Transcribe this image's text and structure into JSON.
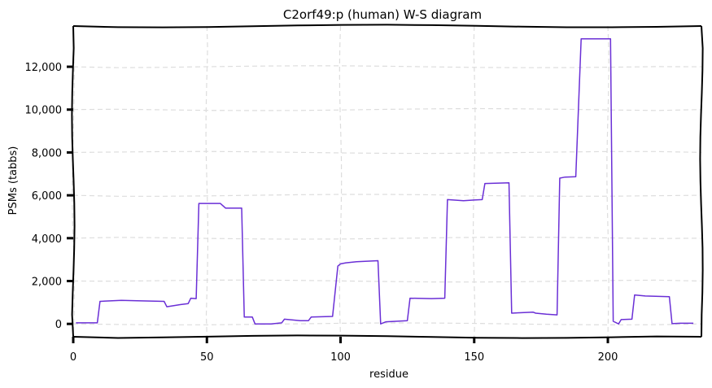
{
  "chart_data": {
    "type": "line",
    "title": "C2orf49:p (human) W-S diagram",
    "xlabel": "residue",
    "ylabel": "PSMs (tabbs)",
    "xlim": [
      0,
      235
    ],
    "ylim": [
      -600,
      13900
    ],
    "xticks": [
      0,
      50,
      100,
      150,
      200
    ],
    "xtick_labels": [
      "0",
      "50",
      "100",
      "150",
      "200"
    ],
    "yticks": [
      0,
      2000,
      4000,
      6000,
      8000,
      10000,
      12000
    ],
    "ytick_labels": [
      "0",
      "2,000",
      "4,000",
      "6,000",
      "8,000",
      "10,000",
      "12,000"
    ],
    "grid": true,
    "style": "xkcd",
    "series": [
      {
        "color": "#6a2fd6",
        "x": [
          1,
          9,
          10,
          18,
          24,
          34,
          35,
          40,
          43,
          44,
          46,
          47,
          55,
          57,
          63,
          64,
          67,
          68,
          74,
          78,
          79,
          85,
          88,
          89,
          97,
          99,
          100,
          102,
          106,
          114,
          115,
          117,
          125,
          126,
          134,
          139,
          140,
          146,
          150,
          153,
          154,
          163,
          164,
          167,
          172,
          173,
          177,
          181,
          182,
          184,
          188,
          190,
          201,
          202,
          204,
          205,
          209,
          210,
          214,
          223,
          224,
          227,
          232
        ],
        "y": [
          50,
          50,
          1050,
          1100,
          1080,
          1050,
          800,
          900,
          950,
          1200,
          1180,
          5620,
          5620,
          5400,
          5400,
          320,
          320,
          0,
          0,
          50,
          220,
          150,
          150,
          320,
          350,
          2700,
          2800,
          2850,
          2900,
          2950,
          0,
          100,
          150,
          1200,
          1180,
          1200,
          5800,
          5750,
          5780,
          5800,
          6550,
          6580,
          500,
          520,
          550,
          500,
          450,
          420,
          6800,
          6850,
          6870,
          13300,
          13300,
          120,
          0,
          200,
          220,
          1350,
          1300,
          1270,
          10,
          30,
          30
        ]
      }
    ]
  }
}
